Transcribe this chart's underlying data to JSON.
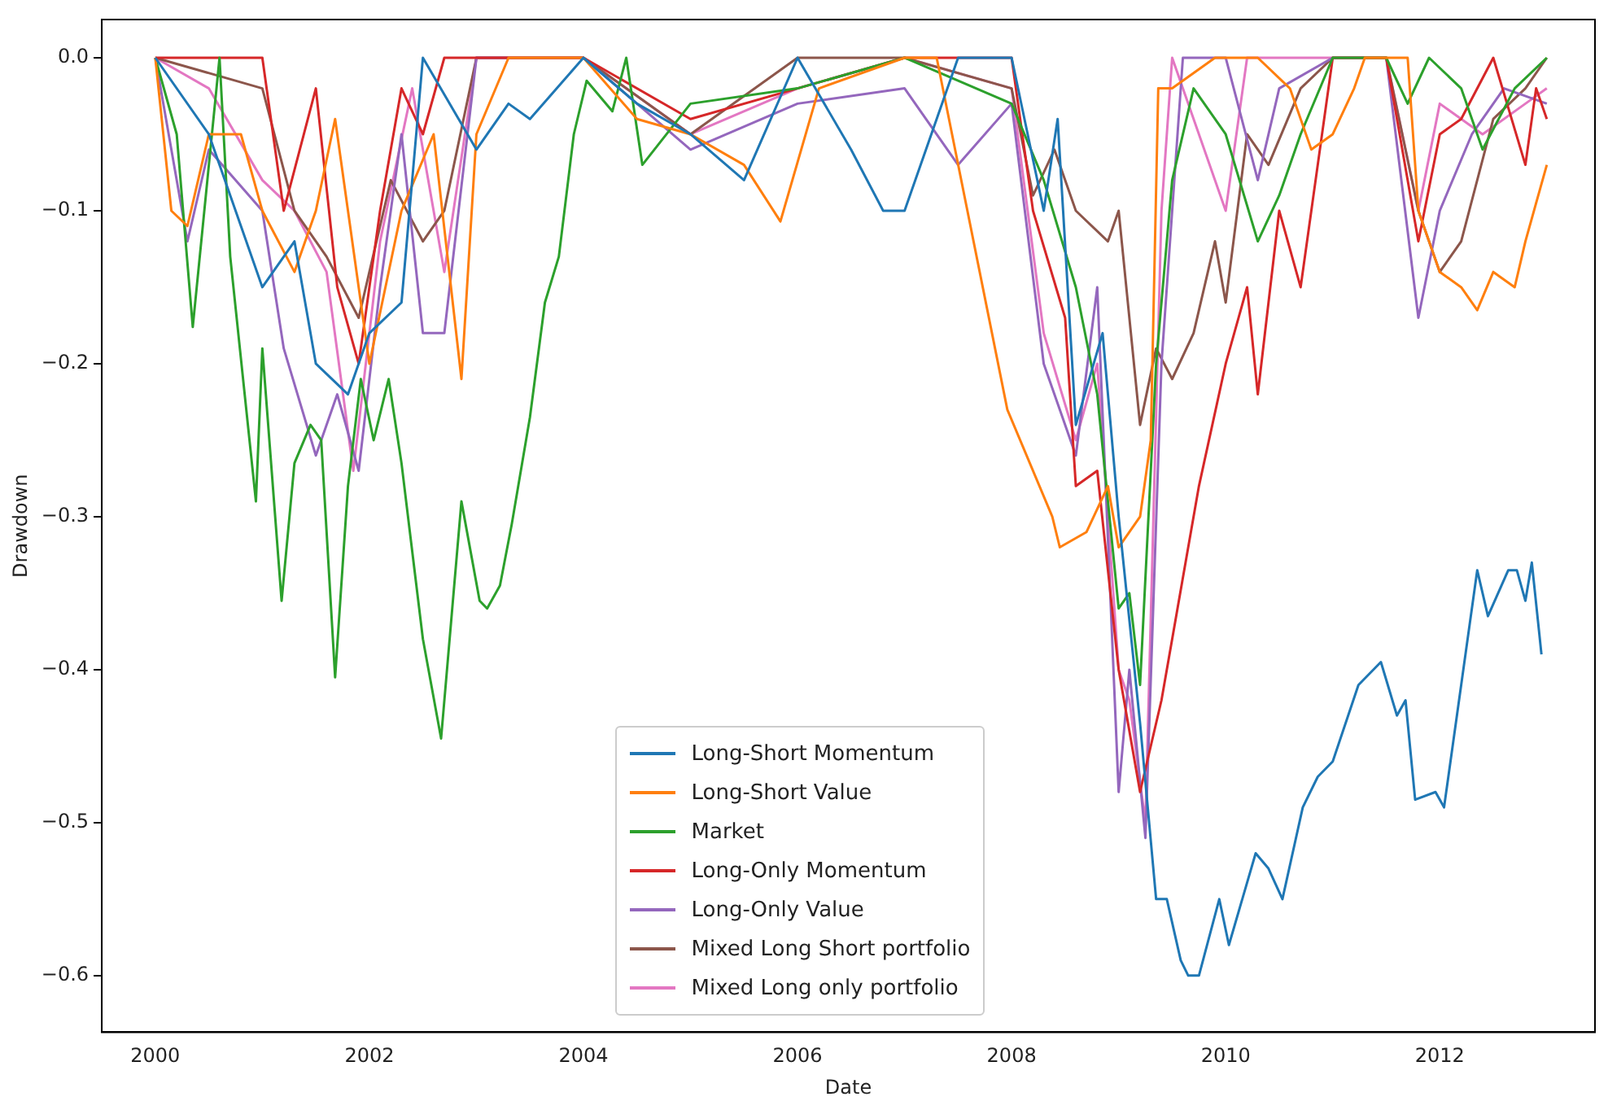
{
  "chart_data": {
    "type": "line",
    "xlabel": "Date",
    "ylabel": "Drawdown",
    "xlim": [
      1999.5,
      2013.45
    ],
    "ylim": [
      -0.637,
      0.025
    ],
    "xticks": [
      2000,
      2002,
      2004,
      2006,
      2008,
      2010,
      2012
    ],
    "yticks": [
      {
        "value": 0,
        "label": "0.0"
      },
      {
        "value": -0.1,
        "label": "−0.1"
      },
      {
        "value": -0.2,
        "label": "−0.2"
      },
      {
        "value": -0.3,
        "label": "−0.3"
      },
      {
        "value": -0.4,
        "label": "−0.4"
      },
      {
        "value": -0.5,
        "label": "−0.5"
      },
      {
        "value": -0.6,
        "label": "−0.6"
      }
    ],
    "grid": false,
    "legend": "bottom",
    "marker": "none",
    "line_style": "solid",
    "series": [
      {
        "name": "Long-Short Momentum",
        "color": "#1f77b4",
        "x": [
          2000,
          2000.5,
          2001,
          2001.3,
          2001.5,
          2001.8,
          2002,
          2002.3,
          2002.5,
          2003,
          2003.3,
          2003.5,
          2004,
          2004.5,
          2005,
          2005.5,
          2006,
          2006.5,
          2006.8,
          2007,
          2007.5,
          2008,
          2008.3,
          2008.43,
          2008.6,
          2008.85,
          2009.0,
          2009.2,
          2009.35,
          2009.45,
          2009.58,
          2009.65,
          2009.75,
          2009.94,
          2010.03,
          2010.28,
          2010.4,
          2010.53,
          2010.72,
          2010.86,
          2011.0,
          2011.24,
          2011.45,
          2011.6,
          2011.68,
          2011.77,
          2011.96,
          2012.04,
          2012.2,
          2012.35,
          2012.45,
          2012.64,
          2012.72,
          2012.8,
          2012.86,
          2012.95
        ],
        "values": [
          0,
          -0.05,
          -0.15,
          -0.12,
          -0.2,
          -0.22,
          -0.18,
          -0.16,
          0,
          -0.06,
          -0.03,
          -0.04,
          0,
          -0.03,
          -0.05,
          -0.08,
          0,
          -0.06,
          -0.1,
          -0.1,
          0,
          0,
          -0.1,
          -0.04,
          -0.24,
          -0.18,
          -0.3,
          -0.435,
          -0.55,
          -0.55,
          -0.59,
          -0.6,
          -0.6,
          -0.55,
          -0.58,
          -0.52,
          -0.53,
          -0.55,
          -0.49,
          -0.47,
          -0.46,
          -0.41,
          -0.395,
          -0.43,
          -0.42,
          -0.485,
          -0.48,
          -0.49,
          -0.41,
          -0.335,
          -0.365,
          -0.335,
          -0.335,
          -0.355,
          -0.33,
          -0.39
        ]
      },
      {
        "name": "Long-Short Value",
        "color": "#ff7f0e",
        "x": [
          2000,
          2000.15,
          2000.3,
          2000.5,
          2000.8,
          2001,
          2001.3,
          2001.5,
          2001.68,
          2002,
          2002.3,
          2002.6,
          2002.86,
          2003.0,
          2003.3,
          2004,
          2004.5,
          2005,
          2005.5,
          2005.84,
          2006.2,
          2007,
          2007.3,
          2007.96,
          2008.38,
          2008.45,
          2008.7,
          2008.9,
          2009.0,
          2009.2,
          2009.3,
          2009.37,
          2009.5,
          2009.9,
          2010.3,
          2010.6,
          2010.8,
          2011,
          2011.2,
          2011.3,
          2011.7,
          2011.8,
          2012.0,
          2012.2,
          2012.35,
          2012.5,
          2012.7,
          2012.8,
          2013.0
        ],
        "values": [
          0,
          -0.1,
          -0.11,
          -0.05,
          -0.05,
          -0.1,
          -0.14,
          -0.1,
          -0.04,
          -0.2,
          -0.1,
          -0.05,
          -0.21,
          -0.05,
          0,
          0,
          -0.04,
          -0.05,
          -0.07,
          -0.107,
          -0.02,
          0,
          0,
          -0.23,
          -0.3,
          -0.32,
          -0.31,
          -0.28,
          -0.32,
          -0.3,
          -0.25,
          -0.02,
          -0.02,
          0,
          0,
          -0.02,
          -0.06,
          -0.05,
          -0.02,
          0,
          0,
          -0.1,
          -0.14,
          -0.15,
          -0.165,
          -0.14,
          -0.15,
          -0.12,
          -0.07
        ]
      },
      {
        "name": "Market",
        "color": "#2ca02c",
        "x": [
          2000,
          2000.2,
          2000.35,
          2000.6,
          2000.7,
          2000.94,
          2001.0,
          2001.18,
          2001.3,
          2001.45,
          2001.55,
          2001.68,
          2001.8,
          2001.92,
          2002.04,
          2002.18,
          2002.3,
          2002.5,
          2002.67,
          2002.86,
          2003.03,
          2003.1,
          2003.22,
          2003.33,
          2003.5,
          2003.64,
          2003.77,
          2003.91,
          2004.03,
          2004.27,
          2004.4,
          2004.55,
          2005,
          2006,
          2007,
          2008,
          2008.3,
          2008.6,
          2008.8,
          2009.0,
          2009.1,
          2009.2,
          2009.35,
          2009.5,
          2009.7,
          2010,
          2010.3,
          2010.5,
          2010.7,
          2011,
          2011.5,
          2011.7,
          2011.9,
          2012.2,
          2012.4,
          2012.7,
          2013
        ],
        "values": [
          0,
          -0.05,
          -0.176,
          0,
          -0.13,
          -0.29,
          -0.19,
          -0.355,
          -0.265,
          -0.24,
          -0.25,
          -0.405,
          -0.28,
          -0.21,
          -0.25,
          -0.21,
          -0.265,
          -0.38,
          -0.445,
          -0.29,
          -0.355,
          -0.36,
          -0.345,
          -0.305,
          -0.235,
          -0.16,
          -0.13,
          -0.05,
          -0.015,
          -0.035,
          0,
          -0.07,
          -0.03,
          -0.02,
          0,
          -0.03,
          -0.08,
          -0.15,
          -0.22,
          -0.36,
          -0.35,
          -0.41,
          -0.2,
          -0.08,
          -0.02,
          -0.05,
          -0.12,
          -0.09,
          -0.05,
          0,
          0,
          -0.03,
          0,
          -0.02,
          -0.06,
          -0.02,
          0
        ]
      },
      {
        "name": "Long-Only Momentum",
        "color": "#d62728",
        "x": [
          2000,
          2001,
          2001.2,
          2001.5,
          2001.7,
          2001.9,
          2002.1,
          2002.3,
          2002.5,
          2002.7,
          2003,
          2004,
          2005,
          2006,
          2007,
          2008,
          2008.2,
          2008.5,
          2008.6,
          2008.8,
          2009.0,
          2009.2,
          2009.4,
          2009.6,
          2009.75,
          2010.0,
          2010.2,
          2010.3,
          2010.5,
          2010.7,
          2011.0,
          2011.5,
          2011.8,
          2012.0,
          2012.2,
          2012.5,
          2012.8,
          2012.9,
          2013
        ],
        "values": [
          0,
          0,
          -0.1,
          -0.02,
          -0.15,
          -0.2,
          -0.1,
          -0.02,
          -0.05,
          0,
          0,
          0,
          -0.04,
          -0.02,
          0,
          0,
          -0.1,
          -0.17,
          -0.28,
          -0.27,
          -0.4,
          -0.48,
          -0.42,
          -0.34,
          -0.28,
          -0.2,
          -0.15,
          -0.22,
          -0.1,
          -0.15,
          0,
          0,
          -0.12,
          -0.05,
          -0.04,
          0,
          -0.07,
          -0.02,
          -0.04
        ]
      },
      {
        "name": "Long-Only Value",
        "color": "#9467bd",
        "x": [
          2000,
          2000.3,
          2000.5,
          2001,
          2001.2,
          2001.5,
          2001.7,
          2001.9,
          2002.1,
          2002.3,
          2002.5,
          2002.7,
          2003,
          2004,
          2005,
          2006,
          2007,
          2007.5,
          2008,
          2008.3,
          2008.6,
          2008.8,
          2009.0,
          2009.1,
          2009.25,
          2009.4,
          2009.6,
          2010,
          2010.3,
          2010.5,
          2011,
          2011.5,
          2011.8,
          2012.0,
          2012.3,
          2012.6,
          2013
        ],
        "values": [
          0,
          -0.12,
          -0.06,
          -0.1,
          -0.19,
          -0.26,
          -0.22,
          -0.27,
          -0.15,
          -0.05,
          -0.18,
          -0.18,
          0,
          0,
          -0.06,
          -0.03,
          -0.02,
          -0.07,
          -0.03,
          -0.2,
          -0.26,
          -0.15,
          -0.48,
          -0.4,
          -0.51,
          -0.2,
          0,
          0,
          -0.08,
          -0.02,
          0,
          0,
          -0.17,
          -0.1,
          -0.05,
          -0.02,
          -0.03
        ]
      },
      {
        "name": "Mixed Long Short portfolio",
        "color": "#8c564b",
        "x": [
          2000,
          2001,
          2001.3,
          2001.6,
          2001.9,
          2002.2,
          2002.5,
          2002.7,
          2003,
          2004,
          2005,
          2006,
          2007,
          2008,
          2008.2,
          2008.4,
          2008.6,
          2008.9,
          2009.0,
          2009.2,
          2009.35,
          2009.5,
          2009.7,
          2009.9,
          2010.0,
          2010.2,
          2010.4,
          2010.7,
          2011,
          2011.5,
          2011.8,
          2012.0,
          2012.2,
          2012.5,
          2012.8,
          2013
        ],
        "values": [
          0,
          -0.02,
          -0.1,
          -0.13,
          -0.17,
          -0.08,
          -0.12,
          -0.1,
          0,
          0,
          -0.05,
          0,
          0,
          -0.02,
          -0.09,
          -0.06,
          -0.1,
          -0.12,
          -0.1,
          -0.24,
          -0.19,
          -0.21,
          -0.18,
          -0.12,
          -0.16,
          -0.05,
          -0.07,
          -0.02,
          0,
          0,
          -0.1,
          -0.14,
          -0.12,
          -0.04,
          -0.02,
          0
        ]
      },
      {
        "name": "Mixed Long only portfolio",
        "color": "#e377c2",
        "x": [
          2000,
          2000.5,
          2001,
          2001.3,
          2001.6,
          2001.85,
          2002.1,
          2002.4,
          2002.7,
          2003,
          2004,
          2005,
          2006,
          2007,
          2008,
          2008.3,
          2008.6,
          2008.8,
          2009.0,
          2009.1,
          2009.25,
          2009.4,
          2009.5,
          2010,
          2010.2,
          2011,
          2011.5,
          2011.8,
          2012,
          2012.4,
          2012.8,
          2013
        ],
        "values": [
          0,
          -0.02,
          -0.08,
          -0.1,
          -0.14,
          -0.27,
          -0.12,
          -0.02,
          -0.14,
          0,
          0,
          -0.05,
          -0.02,
          0,
          -0.02,
          -0.18,
          -0.25,
          -0.2,
          -0.4,
          -0.42,
          -0.5,
          -0.1,
          0,
          -0.1,
          0,
          0,
          0,
          -0.1,
          -0.03,
          -0.05,
          -0.03,
          -0.02
        ]
      }
    ]
  }
}
